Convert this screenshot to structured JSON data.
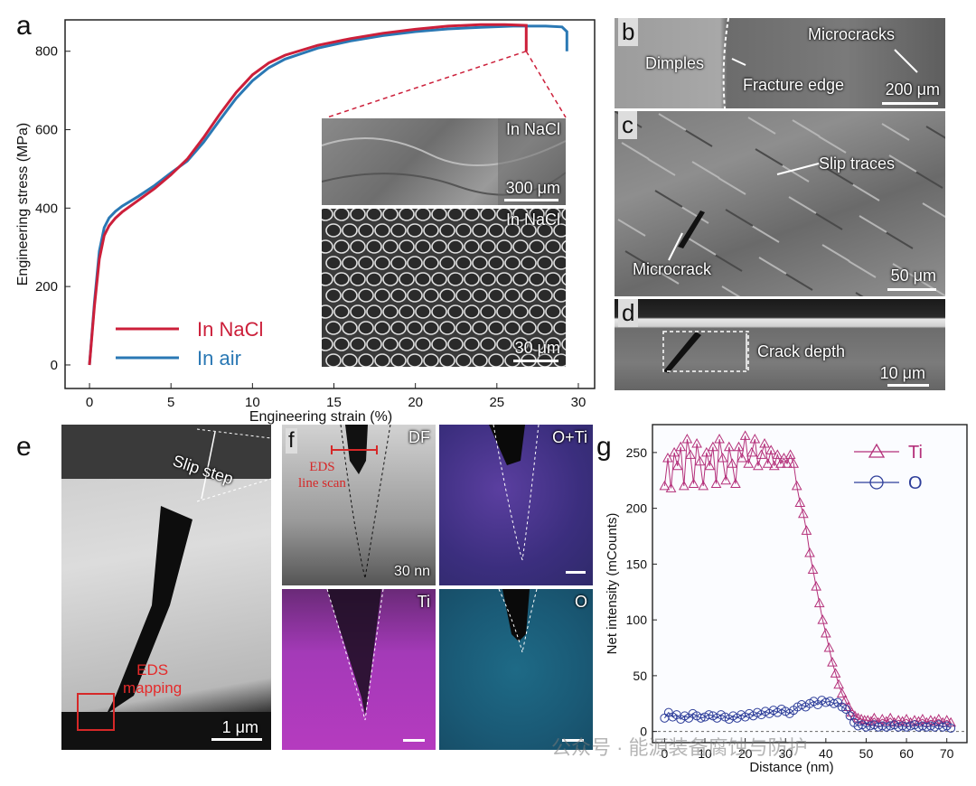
{
  "panels": {
    "a": "a",
    "b": "b",
    "c": "c",
    "d": "d",
    "e": "e",
    "f": "f",
    "g": "g"
  },
  "colors": {
    "nacl": "#cc1f3a",
    "air": "#2a78b4",
    "ti": "#b4307a",
    "o": "#2e3e9a",
    "ti_map": "#b53bbf",
    "o_map": "#2a8fb5"
  },
  "chart_data": [
    {
      "type": "line",
      "xlabel": "Engineering strain (%)",
      "ylabel": "Engineering stress (MPa)",
      "xlim": [
        -1.5,
        31
      ],
      "ylim": [
        -60,
        880
      ],
      "xticks": [
        0,
        5,
        10,
        15,
        20,
        25,
        30
      ],
      "yticks": [
        0,
        200,
        400,
        600,
        800
      ],
      "legend_position": "bottom-left",
      "series": [
        {
          "name": "In NaCl",
          "color": "#cc1f3a",
          "x": [
            0,
            0.3,
            0.6,
            0.9,
            1.2,
            1.6,
            2,
            3,
            4,
            5,
            6,
            7,
            8,
            9,
            10,
            11,
            12,
            14,
            16,
            18,
            20,
            22,
            24,
            25.5,
            26.8,
            26.8
          ],
          "y": [
            0,
            150,
            270,
            330,
            355,
            375,
            390,
            420,
            450,
            485,
            525,
            580,
            640,
            695,
            740,
            770,
            790,
            815,
            832,
            846,
            856,
            864,
            868,
            868,
            866,
            800
          ]
        },
        {
          "name": "In air",
          "color": "#2a78b4",
          "x": [
            0,
            0.3,
            0.6,
            0.9,
            1.2,
            1.6,
            2,
            3,
            4,
            5,
            6,
            7,
            8,
            9,
            10,
            11,
            12,
            14,
            16,
            18,
            20,
            22,
            24,
            26,
            28,
            29,
            29.3,
            29.3
          ],
          "y": [
            0,
            160,
            290,
            350,
            375,
            392,
            405,
            430,
            458,
            490,
            520,
            568,
            625,
            680,
            725,
            758,
            780,
            808,
            826,
            840,
            850,
            857,
            861,
            864,
            864,
            862,
            850,
            800
          ]
        }
      ]
    },
    {
      "type": "line",
      "xlabel": "Distance (nm)",
      "ylabel": "Net intensity (mCounts)",
      "xlim": [
        -3,
        75
      ],
      "ylim": [
        -10,
        275
      ],
      "xticks": [
        0,
        10,
        20,
        30,
        40,
        50,
        60,
        70
      ],
      "yticks": [
        0,
        50,
        100,
        150,
        200,
        250
      ],
      "legend_position": "top-right",
      "series": [
        {
          "name": "Ti",
          "color": "#b4307a",
          "marker": "triangle",
          "x": [
            0,
            0.8,
            1.6,
            2.4,
            3.2,
            4,
            4.8,
            5.6,
            6.4,
            7.2,
            8,
            8.8,
            9.6,
            10.4,
            11.2,
            12,
            12.8,
            13.6,
            14.4,
            15.2,
            16,
            16.8,
            17.6,
            18.4,
            19.2,
            20,
            20.8,
            21.6,
            22.4,
            23.2,
            24,
            24.8,
            25.6,
            26.4,
            27.2,
            28,
            28.8,
            29.6,
            30.4,
            31.2,
            32,
            32.8,
            33.6,
            34.4,
            35.2,
            36,
            36.8,
            37.6,
            38.4,
            39.2,
            40,
            40.8,
            41.6,
            42.4,
            43.2,
            44,
            44.8,
            45.6,
            46.4,
            47.2,
            48,
            48.8,
            49.6,
            50.4,
            51.2,
            52,
            53,
            54,
            55,
            56,
            57,
            58,
            59,
            60,
            61,
            62,
            63,
            64,
            65,
            66,
            67,
            68,
            69,
            70,
            71
          ],
          "y": [
            220,
            245,
            218,
            250,
            238,
            255,
            220,
            262,
            248,
            222,
            258,
            242,
            220,
            250,
            238,
            255,
            222,
            262,
            245,
            225,
            255,
            240,
            222,
            255,
            245,
            265,
            240,
            250,
            262,
            238,
            248,
            258,
            240,
            252,
            238,
            248,
            240,
            245,
            240,
            248,
            240,
            220,
            205,
            195,
            180,
            160,
            145,
            130,
            115,
            100,
            88,
            75,
            62,
            52,
            42,
            34,
            28,
            22,
            17,
            14,
            12,
            11,
            10,
            10,
            9,
            12,
            8,
            11,
            9,
            12,
            8,
            10,
            9,
            11,
            8,
            10,
            9,
            11,
            8,
            10,
            9,
            11,
            8,
            10,
            8
          ]
        },
        {
          "name": "O",
          "color": "#2e3e9a",
          "marker": "circle",
          "x": [
            0,
            1,
            2,
            3,
            4,
            5,
            6,
            7,
            8,
            9,
            10,
            11,
            12,
            13,
            14,
            15,
            16,
            17,
            18,
            19,
            20,
            21,
            22,
            23,
            24,
            25,
            26,
            27,
            28,
            29,
            30,
            31,
            32,
            33,
            34,
            35,
            36,
            37,
            38,
            39,
            40,
            41,
            42,
            43,
            44,
            45,
            46,
            47,
            48,
            49,
            50,
            51,
            52,
            53,
            54,
            55,
            56,
            57,
            58,
            59,
            60,
            61,
            62,
            63,
            64,
            65,
            66,
            67,
            68,
            69,
            70,
            71
          ],
          "y": [
            12,
            17,
            13,
            15,
            11,
            14,
            12,
            16,
            14,
            12,
            13,
            15,
            14,
            12,
            15,
            13,
            11,
            14,
            12,
            15,
            13,
            16,
            14,
            17,
            15,
            18,
            16,
            19,
            17,
            20,
            18,
            16,
            19,
            22,
            24,
            22,
            25,
            27,
            24,
            28,
            26,
            27,
            25,
            26,
            22,
            20,
            14,
            8,
            5,
            6,
            4,
            5,
            6,
            4,
            5,
            4,
            5,
            6,
            4,
            5,
            4,
            5,
            6,
            4,
            5,
            4,
            5,
            4,
            6,
            4,
            5,
            3
          ]
        }
      ]
    }
  ],
  "panel_a": {
    "legend": [
      "In NaCl",
      "In air"
    ],
    "inset_top_label": "In NaCl",
    "inset_top_scale": "300 μm",
    "inset_bottom_label": "In NaCl",
    "inset_bottom_scale": "30 μm"
  },
  "panel_b": {
    "dimples": "Dimples",
    "fracture_edge": "Fracture edge",
    "microcracks": "Microcracks",
    "scale": "200 μm"
  },
  "panel_c": {
    "slip_traces": "Slip traces",
    "microcrack": "Microcrack",
    "scale": "50 μm"
  },
  "panel_d": {
    "crack_depth": "Crack depth",
    "scale": "10 μm"
  },
  "panel_e": {
    "slip_step": "Slip step",
    "eds_mapping_1": "EDS",
    "eds_mapping_2": "mapping",
    "scale": "1 μm"
  },
  "panel_f": {
    "df": "DF",
    "o_ti": "O+Ti",
    "ti": "Ti",
    "o": "O",
    "eds_line_1": "EDS",
    "eds_line_2": "line scan",
    "scale": "30 nn"
  },
  "watermark": "公众号 · 能源装备腐蚀与防护"
}
